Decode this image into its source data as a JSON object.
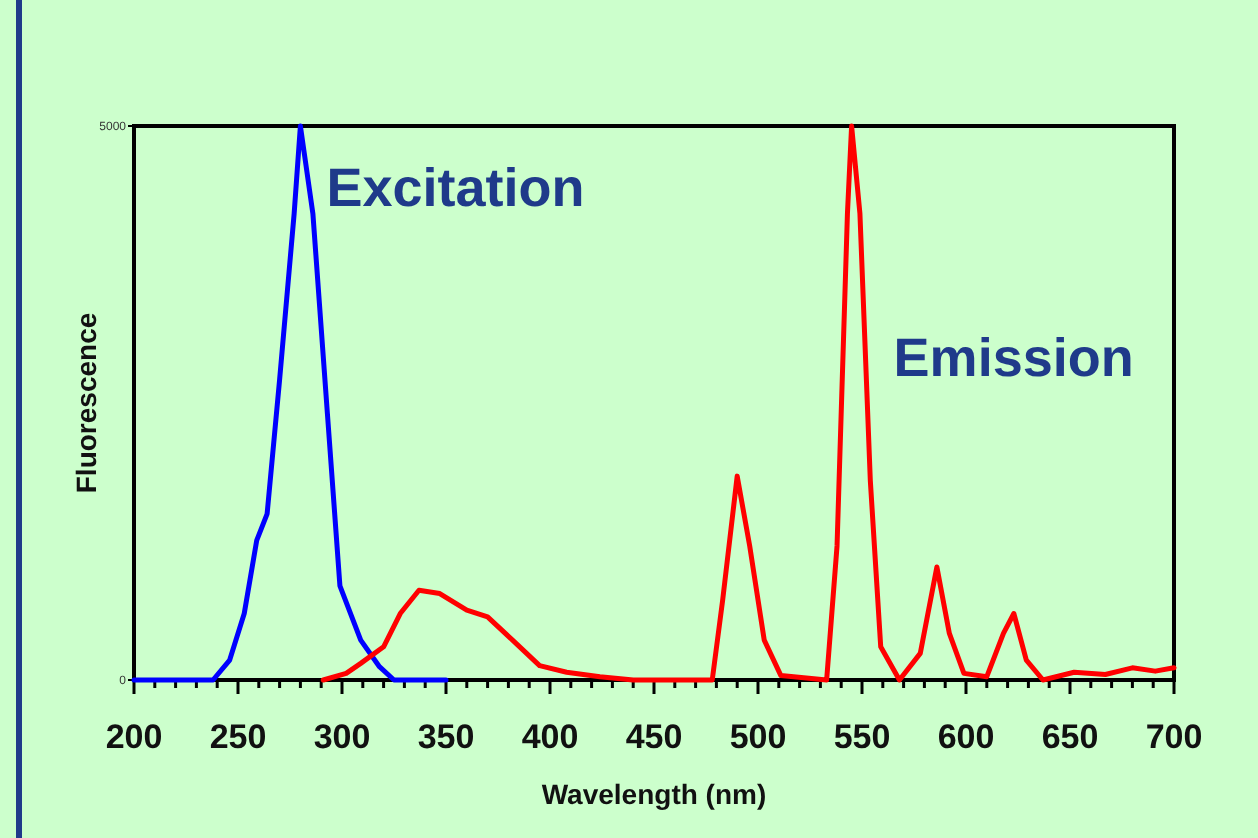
{
  "chart_data": {
    "type": "line",
    "xlabel": "Wavelength (nm)",
    "ylabel": "Fluorescence",
    "xlim": [
      200,
      700
    ],
    "ylim": [
      0,
      5000
    ],
    "xticks": [
      200,
      {
        "value": 210,
        "label": null
      },
      {
        "value": 220,
        "label": null
      },
      {
        "value": 230,
        "label": null
      },
      {
        "value": 240,
        "label": null
      },
      250,
      {
        "value": 260,
        "label": null
      },
      {
        "value": 270,
        "label": null
      },
      {
        "value": 280,
        "label": null
      },
      {
        "value": 290,
        "label": null
      },
      300,
      {
        "value": 310,
        "label": null
      },
      {
        "value": 320,
        "label": null
      },
      {
        "value": 330,
        "label": null
      },
      {
        "value": 340,
        "label": null
      },
      350,
      {
        "value": 360,
        "label": null
      },
      {
        "value": 370,
        "label": null
      },
      {
        "value": 380,
        "label": null
      },
      {
        "value": 390,
        "label": null
      },
      400,
      {
        "value": 410,
        "label": null
      },
      {
        "value": 420,
        "label": null
      },
      {
        "value": 430,
        "label": null
      },
      {
        "value": 440,
        "label": null
      },
      450,
      {
        "value": 460,
        "label": null
      },
      {
        "value": 470,
        "label": null
      },
      {
        "value": 480,
        "label": null
      },
      {
        "value": 490,
        "label": null
      },
      500,
      {
        "value": 510,
        "label": null
      },
      {
        "value": 520,
        "label": null
      },
      {
        "value": 530,
        "label": null
      },
      {
        "value": 540,
        "label": null
      },
      550,
      {
        "value": 560,
        "label": null
      },
      {
        "value": 570,
        "label": null
      },
      {
        "value": 580,
        "label": null
      },
      {
        "value": 590,
        "label": null
      },
      600,
      {
        "value": 610,
        "label": null
      },
      {
        "value": 620,
        "label": null
      },
      {
        "value": 630,
        "label": null
      },
      {
        "value": 640,
        "label": null
      },
      650,
      {
        "value": 660,
        "label": null
      },
      {
        "value": 670,
        "label": null
      },
      {
        "value": 680,
        "label": null
      },
      {
        "value": 690,
        "label": null
      },
      700
    ],
    "yticks": [
      0,
      5000
    ],
    "marker": "none",
    "series": [
      {
        "name": "Excitation",
        "color": "#0000ff",
        "x": [
          200,
          238,
          246,
          253,
          259,
          264,
          270,
          277,
          280,
          286,
          293,
          299,
          309,
          318,
          325,
          350
        ],
        "values": [
          0,
          0,
          180,
          600,
          1260,
          1500,
          2710,
          4210,
          5000,
          4210,
          2400,
          850,
          360,
          120,
          0,
          0
        ]
      },
      {
        "name": "Emission",
        "color": "#ff0000",
        "x": [
          291,
          302,
          309,
          320,
          328,
          337,
          347,
          360,
          370,
          382,
          395,
          408,
          424,
          440,
          478,
          483,
          490,
          496,
          503,
          511,
          533,
          538,
          543,
          545,
          549,
          554,
          559,
          568,
          578,
          586,
          592,
          599,
          610,
          618,
          623,
          629,
          637,
          652,
          667,
          680,
          691,
          700
        ],
        "values": [
          0,
          60,
          150,
          300,
          600,
          810,
          780,
          630,
          570,
          360,
          130,
          70,
          30,
          0,
          0,
          720,
          1840,
          1210,
          360,
          40,
          0,
          1210,
          4210,
          5000,
          4210,
          1800,
          300,
          0,
          240,
          1020,
          420,
          60,
          30,
          420,
          600,
          180,
          0,
          70,
          50,
          110,
          80,
          110
        ]
      }
    ]
  }
}
